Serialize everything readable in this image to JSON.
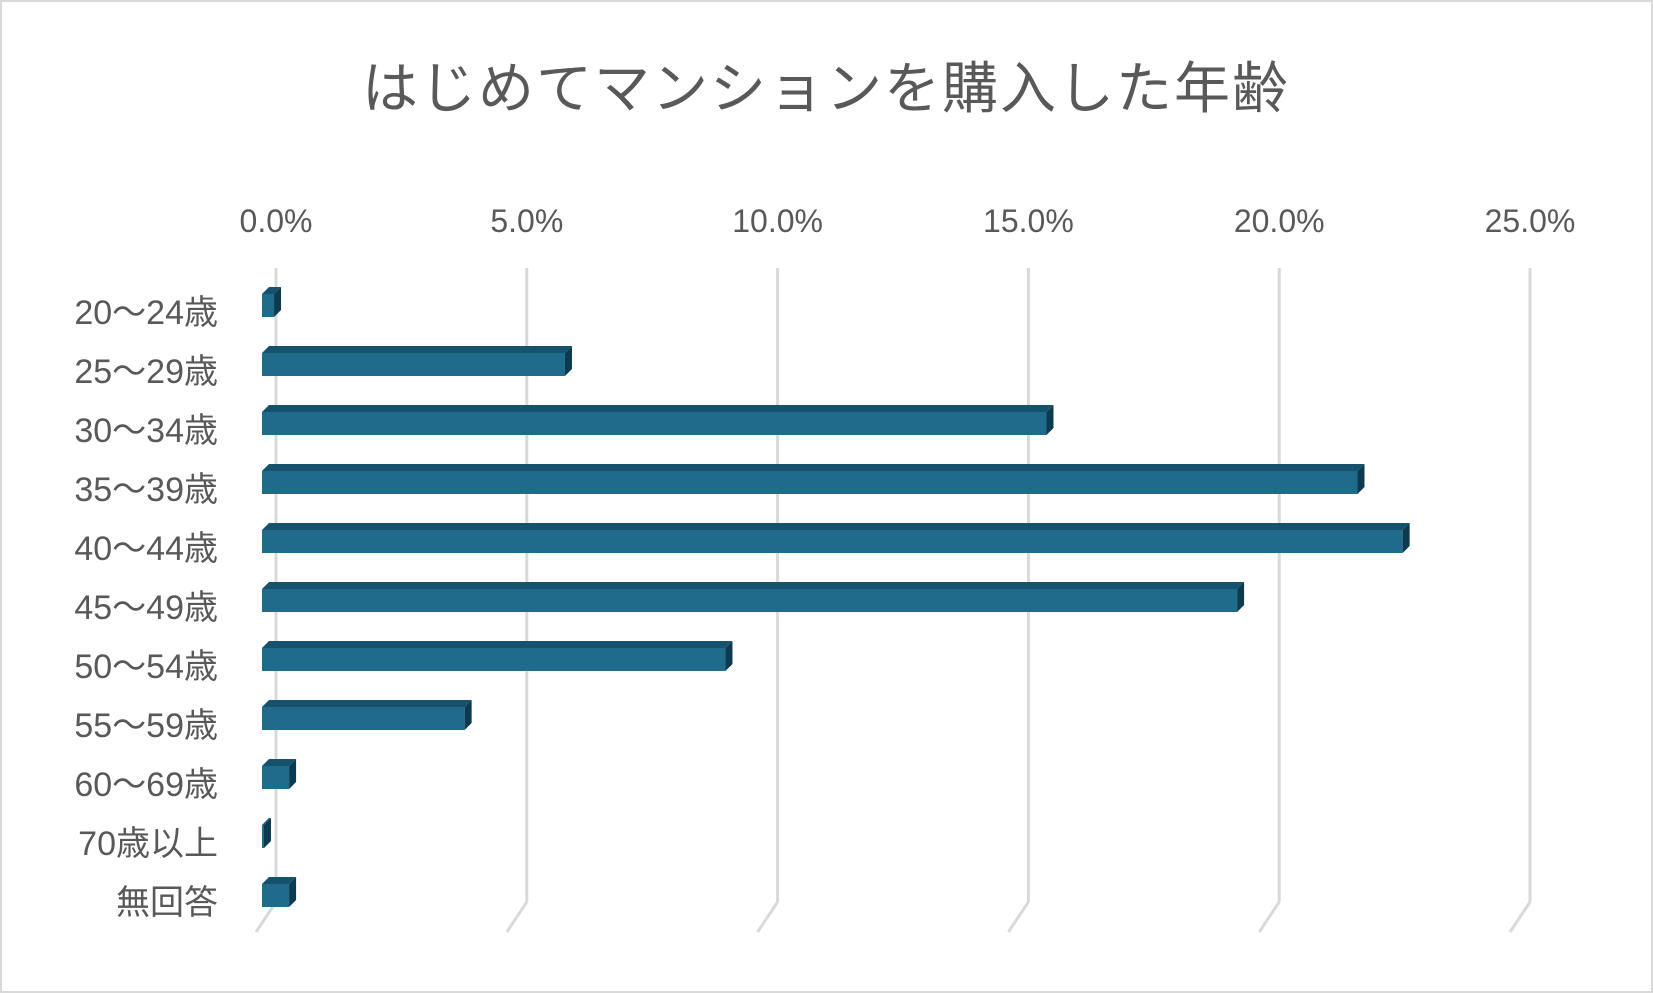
{
  "chart_data": {
    "type": "bar",
    "orientation": "horizontal",
    "style": "3d",
    "title": "はじめてマンションを購入した年齢",
    "categories": [
      "20～24歳",
      "25～29歳",
      "30～34歳",
      "35～39歳",
      "40～44歳",
      "45～49歳",
      "50～54歳",
      "55～59歳",
      "60～69歳",
      "70歳以上",
      "無回答"
    ],
    "values": [
      0.2,
      6.0,
      15.6,
      21.8,
      22.7,
      19.4,
      9.2,
      4.0,
      0.5,
      0.0,
      0.5
    ],
    "xlim": [
      0,
      25
    ],
    "xticks": [
      "0.0%",
      "5.0%",
      "10.0%",
      "15.0%",
      "20.0%",
      "25.0%"
    ],
    "x_axis_position": "top",
    "grid": true,
    "legend": "none",
    "colors": {
      "bar_front": "#1f6b8c",
      "bar_top": "#16526d",
      "bar_side": "#0e3a4f",
      "grid": "#d9d9d9",
      "text": "#595959"
    }
  }
}
